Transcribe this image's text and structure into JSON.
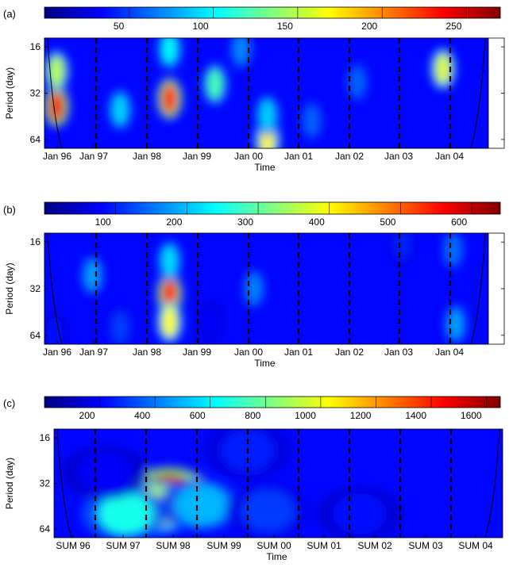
{
  "chart_data": [
    {
      "type": "heatmap",
      "panel_label": "(a)",
      "xlabel": "Time",
      "ylabel": "Period (day)",
      "y_ticks": [
        "16",
        "32",
        "64"
      ],
      "x_ticks": [
        "Jan 96",
        "Jan 97",
        "Jan 98",
        "Jan 99",
        "Jan 00",
        "Jan 01",
        "Jan 02",
        "Jan 03",
        "Jan 04"
      ],
      "colorbar_ticks": [
        "50",
        "100",
        "150",
        "200",
        "250"
      ],
      "colorbar_max": 270,
      "blobs": [
        {
          "x": 0.24,
          "y": 0.62,
          "value": 240
        },
        {
          "x": 0.24,
          "y": 0.3,
          "value": 150
        },
        {
          "x": 2.48,
          "y": 0.55,
          "value": 230
        },
        {
          "x": 2.48,
          "y": 0.1,
          "value": 100
        },
        {
          "x": 3.38,
          "y": 0.42,
          "value": 120
        },
        {
          "x": 1.5,
          "y": 0.65,
          "value": 90
        },
        {
          "x": 4.42,
          "y": 0.92,
          "value": 170
        },
        {
          "x": 4.42,
          "y": 0.7,
          "value": 90
        },
        {
          "x": 7.9,
          "y": 0.28,
          "value": 160
        },
        {
          "x": 3.9,
          "y": 0.1,
          "value": 70
        },
        {
          "x": 6.2,
          "y": 0.4,
          "value": 60
        },
        {
          "x": 5.3,
          "y": 0.75,
          "value": 60
        }
      ]
    },
    {
      "type": "heatmap",
      "panel_label": "(b)",
      "xlabel": "Time",
      "ylabel": "Period (day)",
      "y_ticks": [
        "16",
        "32",
        "64"
      ],
      "x_ticks": [
        "Jan 96",
        "Jan 97",
        "Jan 98",
        "Jan 99",
        "Jan 00",
        "Jan 01",
        "Jan 02",
        "Jan 03",
        "Jan 04"
      ],
      "colorbar_ticks": [
        "100",
        "200",
        "300",
        "400",
        "500",
        "600"
      ],
      "colorbar_max": 640,
      "blobs": [
        {
          "x": 2.48,
          "y": 0.55,
          "value": 560
        },
        {
          "x": 2.48,
          "y": 0.8,
          "value": 400
        },
        {
          "x": 2.48,
          "y": 0.25,
          "value": 220
        },
        {
          "x": 0.95,
          "y": 0.38,
          "value": 180
        },
        {
          "x": 4.15,
          "y": 0.5,
          "value": 160
        },
        {
          "x": 8.15,
          "y": 0.82,
          "value": 180
        },
        {
          "x": 8.1,
          "y": 0.15,
          "value": 150
        },
        {
          "x": 1.5,
          "y": 0.85,
          "value": 120
        },
        {
          "x": 7.1,
          "y": 0.1,
          "value": 100
        },
        {
          "x": 0.2,
          "y": 0.9,
          "value": 90
        },
        {
          "x": 3.3,
          "y": 0.8,
          "value": 80
        }
      ]
    },
    {
      "type": "heatmap",
      "panel_label": "(c)",
      "xlabel": "Time",
      "ylabel": "Period (day)",
      "y_ticks": [
        "16",
        "32",
        "64"
      ],
      "x_ticks": [
        "SUM 96",
        "SUM 97",
        "SUM 98",
        "SUM 99",
        "SUM 00",
        "SUM 01",
        "SUM 02",
        "SUM 03",
        "SUM 04"
      ],
      "colorbar_ticks": [
        "200",
        "400",
        "600",
        "800",
        "1000",
        "1200",
        "1400",
        "1600"
      ],
      "colorbar_max": 1650,
      "blobs": [
        {
          "x": 2.25,
          "y": 0.6,
          "value": 1550
        },
        {
          "x": 2.0,
          "y": 0.72,
          "value": 900
        },
        {
          "x": 1.4,
          "y": 0.78,
          "value": 650
        },
        {
          "x": 2.9,
          "y": 0.7,
          "value": 500
        },
        {
          "x": 4.2,
          "y": 0.75,
          "value": 300
        },
        {
          "x": 3.8,
          "y": 0.2,
          "value": 250
        },
        {
          "x": 6.0,
          "y": 0.78,
          "value": 220
        },
        {
          "x": 1.0,
          "y": 0.4,
          "value": 200
        }
      ]
    }
  ]
}
